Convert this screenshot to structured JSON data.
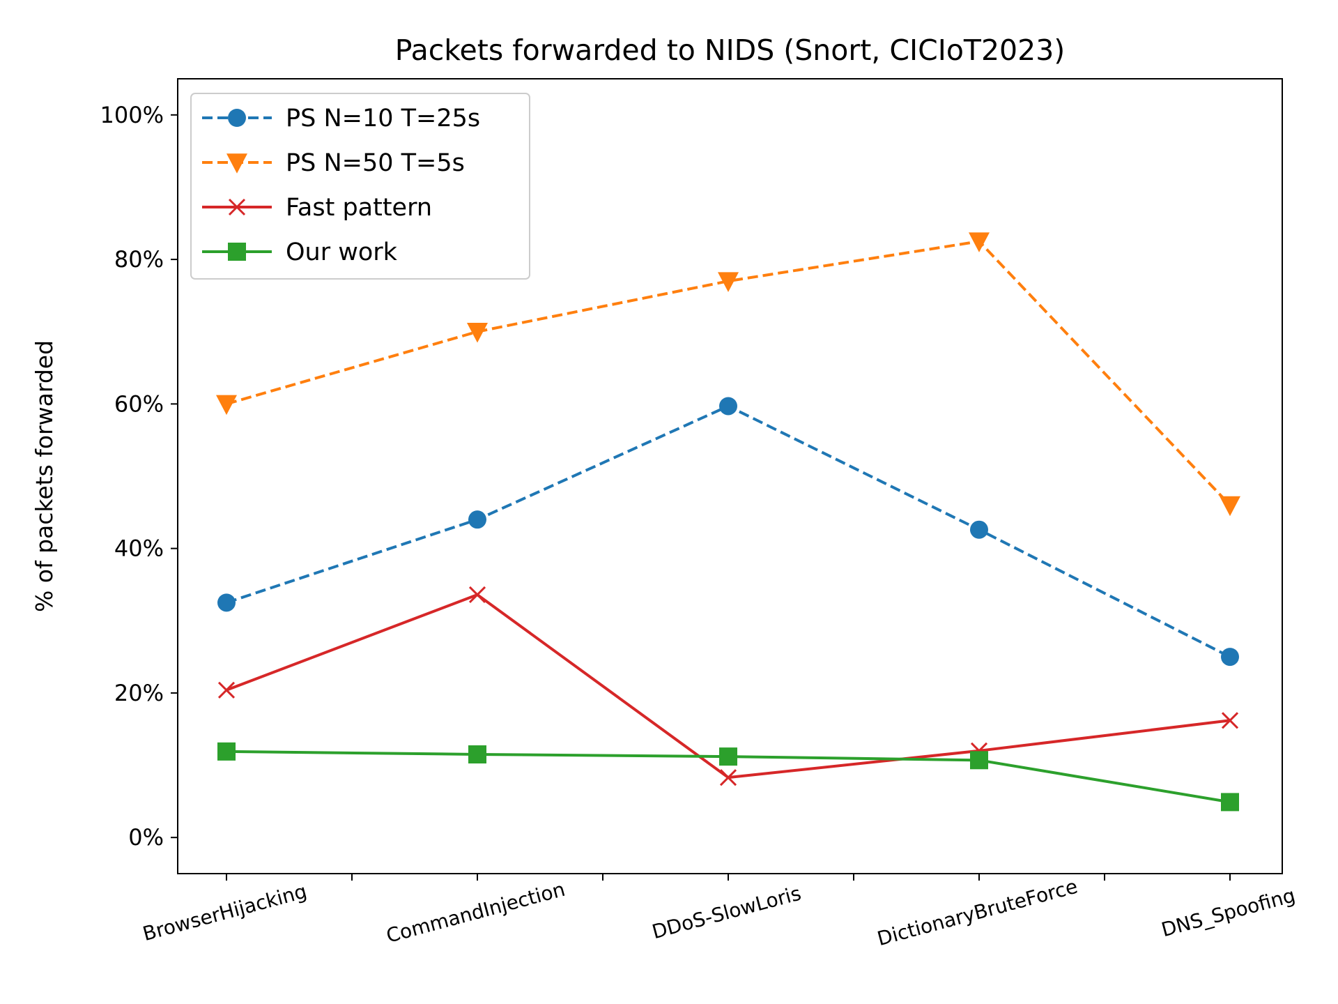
{
  "chart_data": {
    "type": "line",
    "title": "Packets forwarded to NIDS (Snort, CICIoT2023)",
    "xlabel": "",
    "ylabel": "% of packets forwarded",
    "categories": [
      "BrowserHijacking",
      "CommandInjection",
      "DDoS-SlowLoris",
      "DictionaryBruteForce",
      "DNS_Spoofing"
    ],
    "ylim": [
      -5,
      105
    ],
    "yticks": [
      0,
      20,
      40,
      60,
      80,
      100
    ],
    "ytick_labels": [
      "0%",
      "20%",
      "40%",
      "60%",
      "80%",
      "100%"
    ],
    "grid": false,
    "legend_position": "top-left",
    "series": [
      {
        "name": "PS N=10 T=25s",
        "values": [
          32.5,
          44.0,
          59.7,
          42.6,
          25.0
        ],
        "color": "#1f77b4",
        "linestyle": "dashed",
        "marker": "circle"
      },
      {
        "name": "PS N=50 T=5s",
        "values": [
          60.0,
          70.0,
          77.0,
          82.5,
          46.0
        ],
        "color": "#ff7f0e",
        "linestyle": "dashed",
        "marker": "triangle-down"
      },
      {
        "name": "Fast pattern",
        "values": [
          20.4,
          33.6,
          8.3,
          12.0,
          16.2
        ],
        "color": "#d62728",
        "linestyle": "solid",
        "marker": "x"
      },
      {
        "name": "Our work",
        "values": [
          11.9,
          11.5,
          11.2,
          10.7,
          4.9
        ],
        "color": "#2ca02c",
        "linestyle": "solid",
        "marker": "square"
      }
    ]
  }
}
